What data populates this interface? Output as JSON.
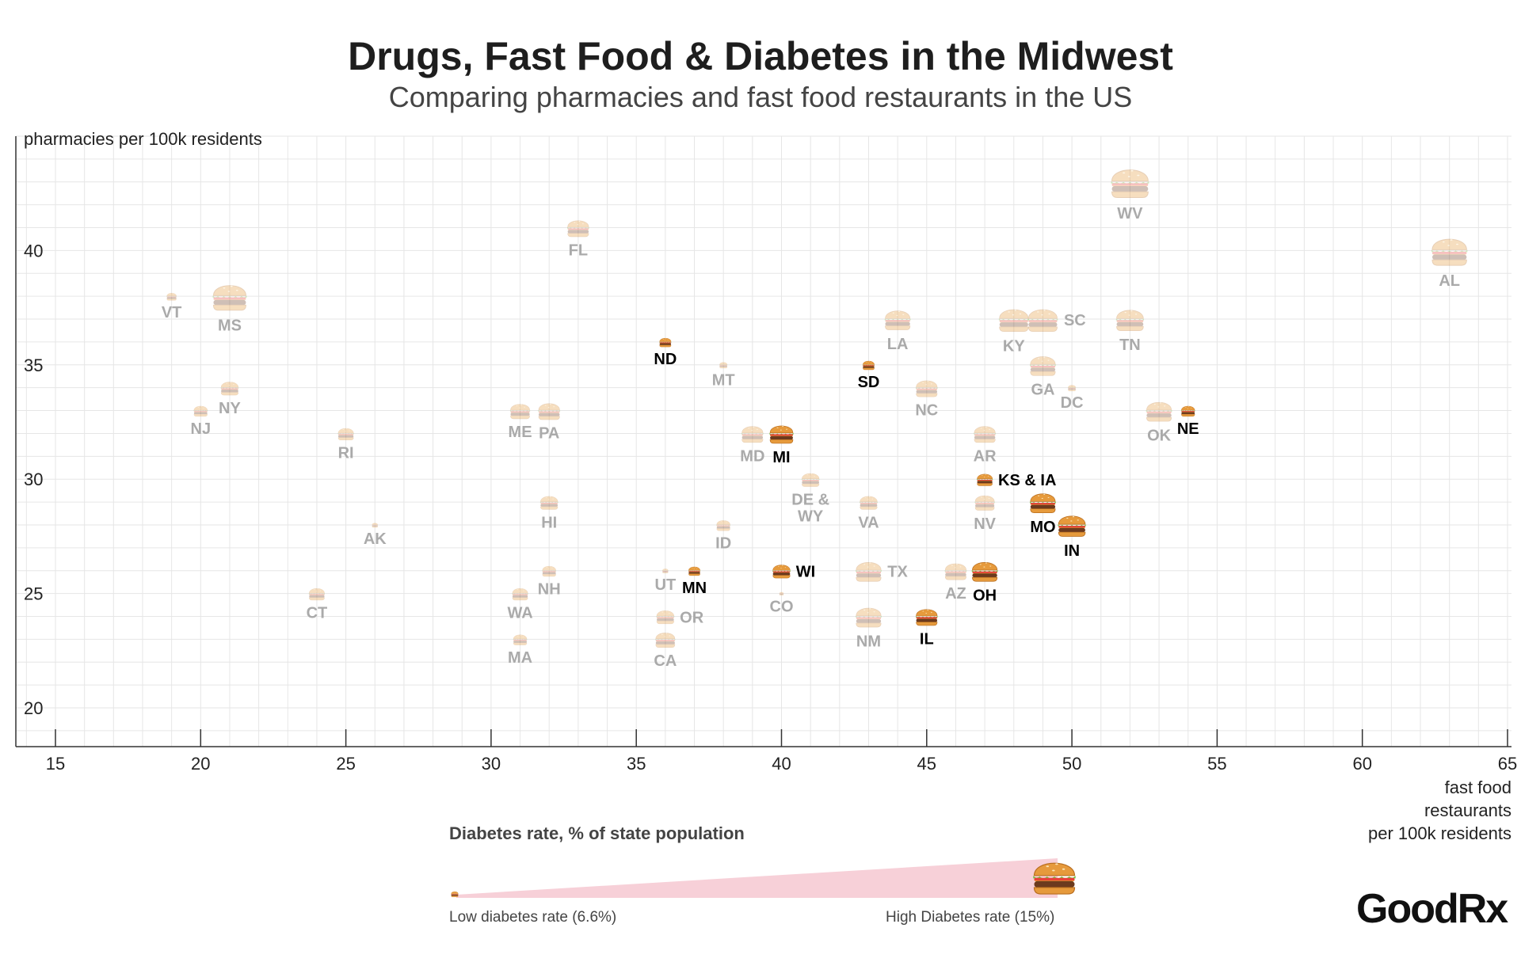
{
  "title": "Drugs, Fast Food & Diabetes in the Midwest",
  "subtitle": "Comparing pharmacies and fast food restaurants in the US",
  "brand": "GoodRx",
  "legend": {
    "title": "Diabetes rate, % of state population",
    "low_label": "Low diabetes rate (6.6%)",
    "high_label": "High Diabetes rate (15%)"
  },
  "colors": {
    "highlight_label": "#000000",
    "faded_label": "#aaaaaa",
    "grid": "#e6e6e6",
    "legend_wedge": "#f7d0d8"
  },
  "icon": "burger-icon",
  "chart_data": {
    "type": "scatter",
    "title": "Drugs, Fast Food & Diabetes in the Midwest",
    "xlabel": "fast food restaurants per 100k residents",
    "ylabel": "pharmacies per 100k residents",
    "xlabel_lines": [
      "fast food",
      "restaurants",
      "per 100k residents"
    ],
    "ylabel_top_text": "pharmacies per 100k residents",
    "xlim": [
      14,
      65
    ],
    "ylim": [
      18.3,
      45
    ],
    "xticks": [
      15,
      20,
      25,
      30,
      35,
      40,
      45,
      50,
      55,
      60,
      65
    ],
    "yticks": [
      20,
      25,
      30,
      35,
      40,
      45
    ],
    "grid": true,
    "size_encoding": "diabetes rate (% of state population), 6.6% to 15%",
    "points": [
      {
        "label": "WV",
        "x": 52,
        "y": 43,
        "size": 15,
        "highlight": false,
        "pos": "below"
      },
      {
        "label": "AL",
        "x": 63,
        "y": 40,
        "size": 14.5,
        "highlight": false,
        "pos": "below"
      },
      {
        "label": "FL",
        "x": 33,
        "y": 41,
        "size": 11,
        "highlight": false,
        "pos": "below"
      },
      {
        "label": "VT",
        "x": 19,
        "y": 38,
        "size": 8,
        "highlight": false,
        "pos": "below"
      },
      {
        "label": "MS",
        "x": 21,
        "y": 38,
        "size": 14,
        "highlight": false,
        "pos": "below"
      },
      {
        "label": "ND",
        "x": 36,
        "y": 36,
        "size": 8.5,
        "highlight": true,
        "pos": "below"
      },
      {
        "label": "MT",
        "x": 38,
        "y": 35,
        "size": 7.5,
        "highlight": false,
        "pos": "below"
      },
      {
        "label": "SD",
        "x": 43,
        "y": 35,
        "size": 8.5,
        "highlight": true,
        "pos": "below"
      },
      {
        "label": "LA",
        "x": 44,
        "y": 37,
        "size": 12,
        "highlight": false,
        "pos": "below"
      },
      {
        "label": "KY",
        "x": 48,
        "y": 37,
        "size": 13,
        "highlight": false,
        "pos": "below"
      },
      {
        "label": "SC",
        "x": 49,
        "y": 37,
        "size": 13,
        "highlight": false,
        "pos": "right"
      },
      {
        "label": "TN",
        "x": 52,
        "y": 37,
        "size": 12.5,
        "highlight": false,
        "pos": "below"
      },
      {
        "label": "GA",
        "x": 49,
        "y": 35,
        "size": 12,
        "highlight": false,
        "pos": "below"
      },
      {
        "label": "DC",
        "x": 50,
        "y": 34,
        "size": 7.5,
        "highlight": false,
        "pos": "below"
      },
      {
        "label": "NC",
        "x": 45,
        "y": 34,
        "size": 11,
        "highlight": false,
        "pos": "below"
      },
      {
        "label": "NY",
        "x": 21,
        "y": 34,
        "size": 10,
        "highlight": false,
        "pos": "below"
      },
      {
        "label": "NJ",
        "x": 20,
        "y": 33,
        "size": 9,
        "highlight": false,
        "pos": "below"
      },
      {
        "label": "ME",
        "x": 31,
        "y": 33,
        "size": 10.5,
        "highlight": false,
        "pos": "below"
      },
      {
        "label": "PA",
        "x": 32,
        "y": 33,
        "size": 11,
        "highlight": false,
        "pos": "below"
      },
      {
        "label": "OK",
        "x": 53,
        "y": 33,
        "size": 12,
        "highlight": false,
        "pos": "below"
      },
      {
        "label": "NE",
        "x": 54,
        "y": 33,
        "size": 9,
        "highlight": true,
        "pos": "below"
      },
      {
        "label": "RI",
        "x": 25,
        "y": 32,
        "size": 9.5,
        "highlight": false,
        "pos": "below"
      },
      {
        "label": "MD",
        "x": 39,
        "y": 32,
        "size": 11,
        "highlight": false,
        "pos": "below"
      },
      {
        "label": "MI",
        "x": 40,
        "y": 32,
        "size": 11.5,
        "highlight": true,
        "pos": "below"
      },
      {
        "label": "AR",
        "x": 47,
        "y": 32,
        "size": 11,
        "highlight": false,
        "pos": "below"
      },
      {
        "label": "KS & IA",
        "x": 47,
        "y": 30,
        "size": 9.5,
        "highlight": true,
        "pos": "right"
      },
      {
        "label": "DE &\nWY",
        "x": 41,
        "y": 30,
        "size": 10,
        "highlight": false,
        "pos": "below"
      },
      {
        "label": "HI",
        "x": 32,
        "y": 29,
        "size": 10,
        "highlight": false,
        "pos": "below"
      },
      {
        "label": "VA",
        "x": 43,
        "y": 29,
        "size": 10,
        "highlight": false,
        "pos": "below"
      },
      {
        "label": "NV",
        "x": 47,
        "y": 29,
        "size": 10.5,
        "highlight": false,
        "pos": "below"
      },
      {
        "label": "MO",
        "x": 49,
        "y": 29,
        "size": 12,
        "highlight": true,
        "pos": "below"
      },
      {
        "label": "IN",
        "x": 50,
        "y": 28,
        "size": 12.5,
        "highlight": true,
        "pos": "below"
      },
      {
        "label": "AK",
        "x": 26,
        "y": 28,
        "size": 7,
        "highlight": false,
        "pos": "below"
      },
      {
        "label": "ID",
        "x": 38,
        "y": 28,
        "size": 9,
        "highlight": false,
        "pos": "below"
      },
      {
        "label": "NH",
        "x": 32,
        "y": 26,
        "size": 9,
        "highlight": false,
        "pos": "below"
      },
      {
        "label": "UT",
        "x": 36,
        "y": 26,
        "size": 7,
        "highlight": false,
        "pos": "below"
      },
      {
        "label": "MN",
        "x": 37,
        "y": 26,
        "size": 8.5,
        "highlight": true,
        "pos": "below"
      },
      {
        "label": "WI",
        "x": 40,
        "y": 26,
        "size": 10,
        "highlight": true,
        "pos": "right"
      },
      {
        "label": "TX",
        "x": 43,
        "y": 26,
        "size": 12,
        "highlight": false,
        "pos": "right"
      },
      {
        "label": "AZ",
        "x": 46,
        "y": 26,
        "size": 11,
        "highlight": false,
        "pos": "below"
      },
      {
        "label": "OH",
        "x": 47,
        "y": 26,
        "size": 12,
        "highlight": true,
        "pos": "below"
      },
      {
        "label": "CT",
        "x": 24,
        "y": 25,
        "size": 9.5,
        "highlight": false,
        "pos": "below"
      },
      {
        "label": "WA",
        "x": 31,
        "y": 25,
        "size": 9.5,
        "highlight": false,
        "pos": "below"
      },
      {
        "label": "CO",
        "x": 40,
        "y": 25,
        "size": 6.6,
        "highlight": false,
        "pos": "below"
      },
      {
        "label": "OR",
        "x": 36,
        "y": 24,
        "size": 10,
        "highlight": false,
        "pos": "right"
      },
      {
        "label": "NM",
        "x": 43,
        "y": 24,
        "size": 12,
        "highlight": false,
        "pos": "below"
      },
      {
        "label": "IL",
        "x": 45,
        "y": 24,
        "size": 11,
        "highlight": true,
        "pos": "below"
      },
      {
        "label": "MA",
        "x": 31,
        "y": 23,
        "size": 9,
        "highlight": false,
        "pos": "below"
      },
      {
        "label": "CA",
        "x": 36,
        "y": 23,
        "size": 10.5,
        "highlight": false,
        "pos": "below"
      }
    ]
  }
}
